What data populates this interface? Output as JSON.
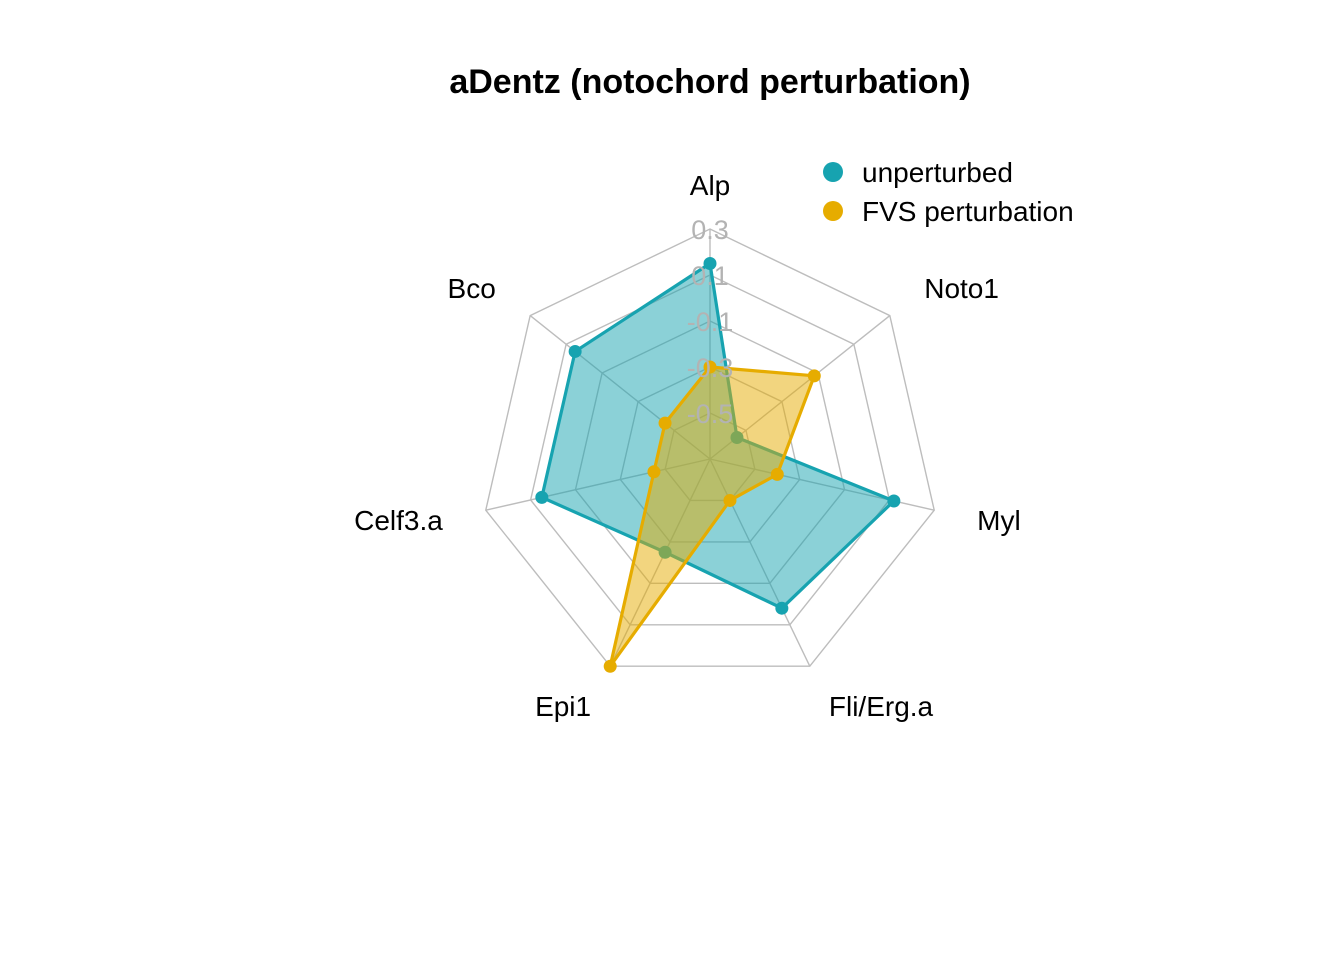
{
  "chart_data": {
    "type": "radar",
    "title": "aDentz (notochord perturbation)",
    "axes": [
      "Alp",
      "Noto1",
      "Myl",
      "Fli/Erg.a",
      "Epi1",
      "Celf3.a",
      "Bco"
    ],
    "rlim": [
      -0.7,
      0.3
    ],
    "ticks": [
      0.3,
      0.1,
      -0.1,
      -0.3,
      -0.5
    ],
    "tick_labels": [
      "0.3",
      "0.1",
      "-0.1",
      "-0.3",
      "-0.5"
    ],
    "grid": true,
    "legend_position": "top-right",
    "series": [
      {
        "name": "unperturbed",
        "color": "#17a3b0",
        "values": [
          0.15,
          -0.55,
          0.12,
          0.02,
          -0.25,
          0.05,
          0.05
        ]
      },
      {
        "name": "FVS perturbation",
        "color": "#e6ac00",
        "values": [
          -0.3,
          -0.12,
          -0.4,
          -0.5,
          0.3,
          -0.45,
          -0.45
        ]
      }
    ]
  }
}
